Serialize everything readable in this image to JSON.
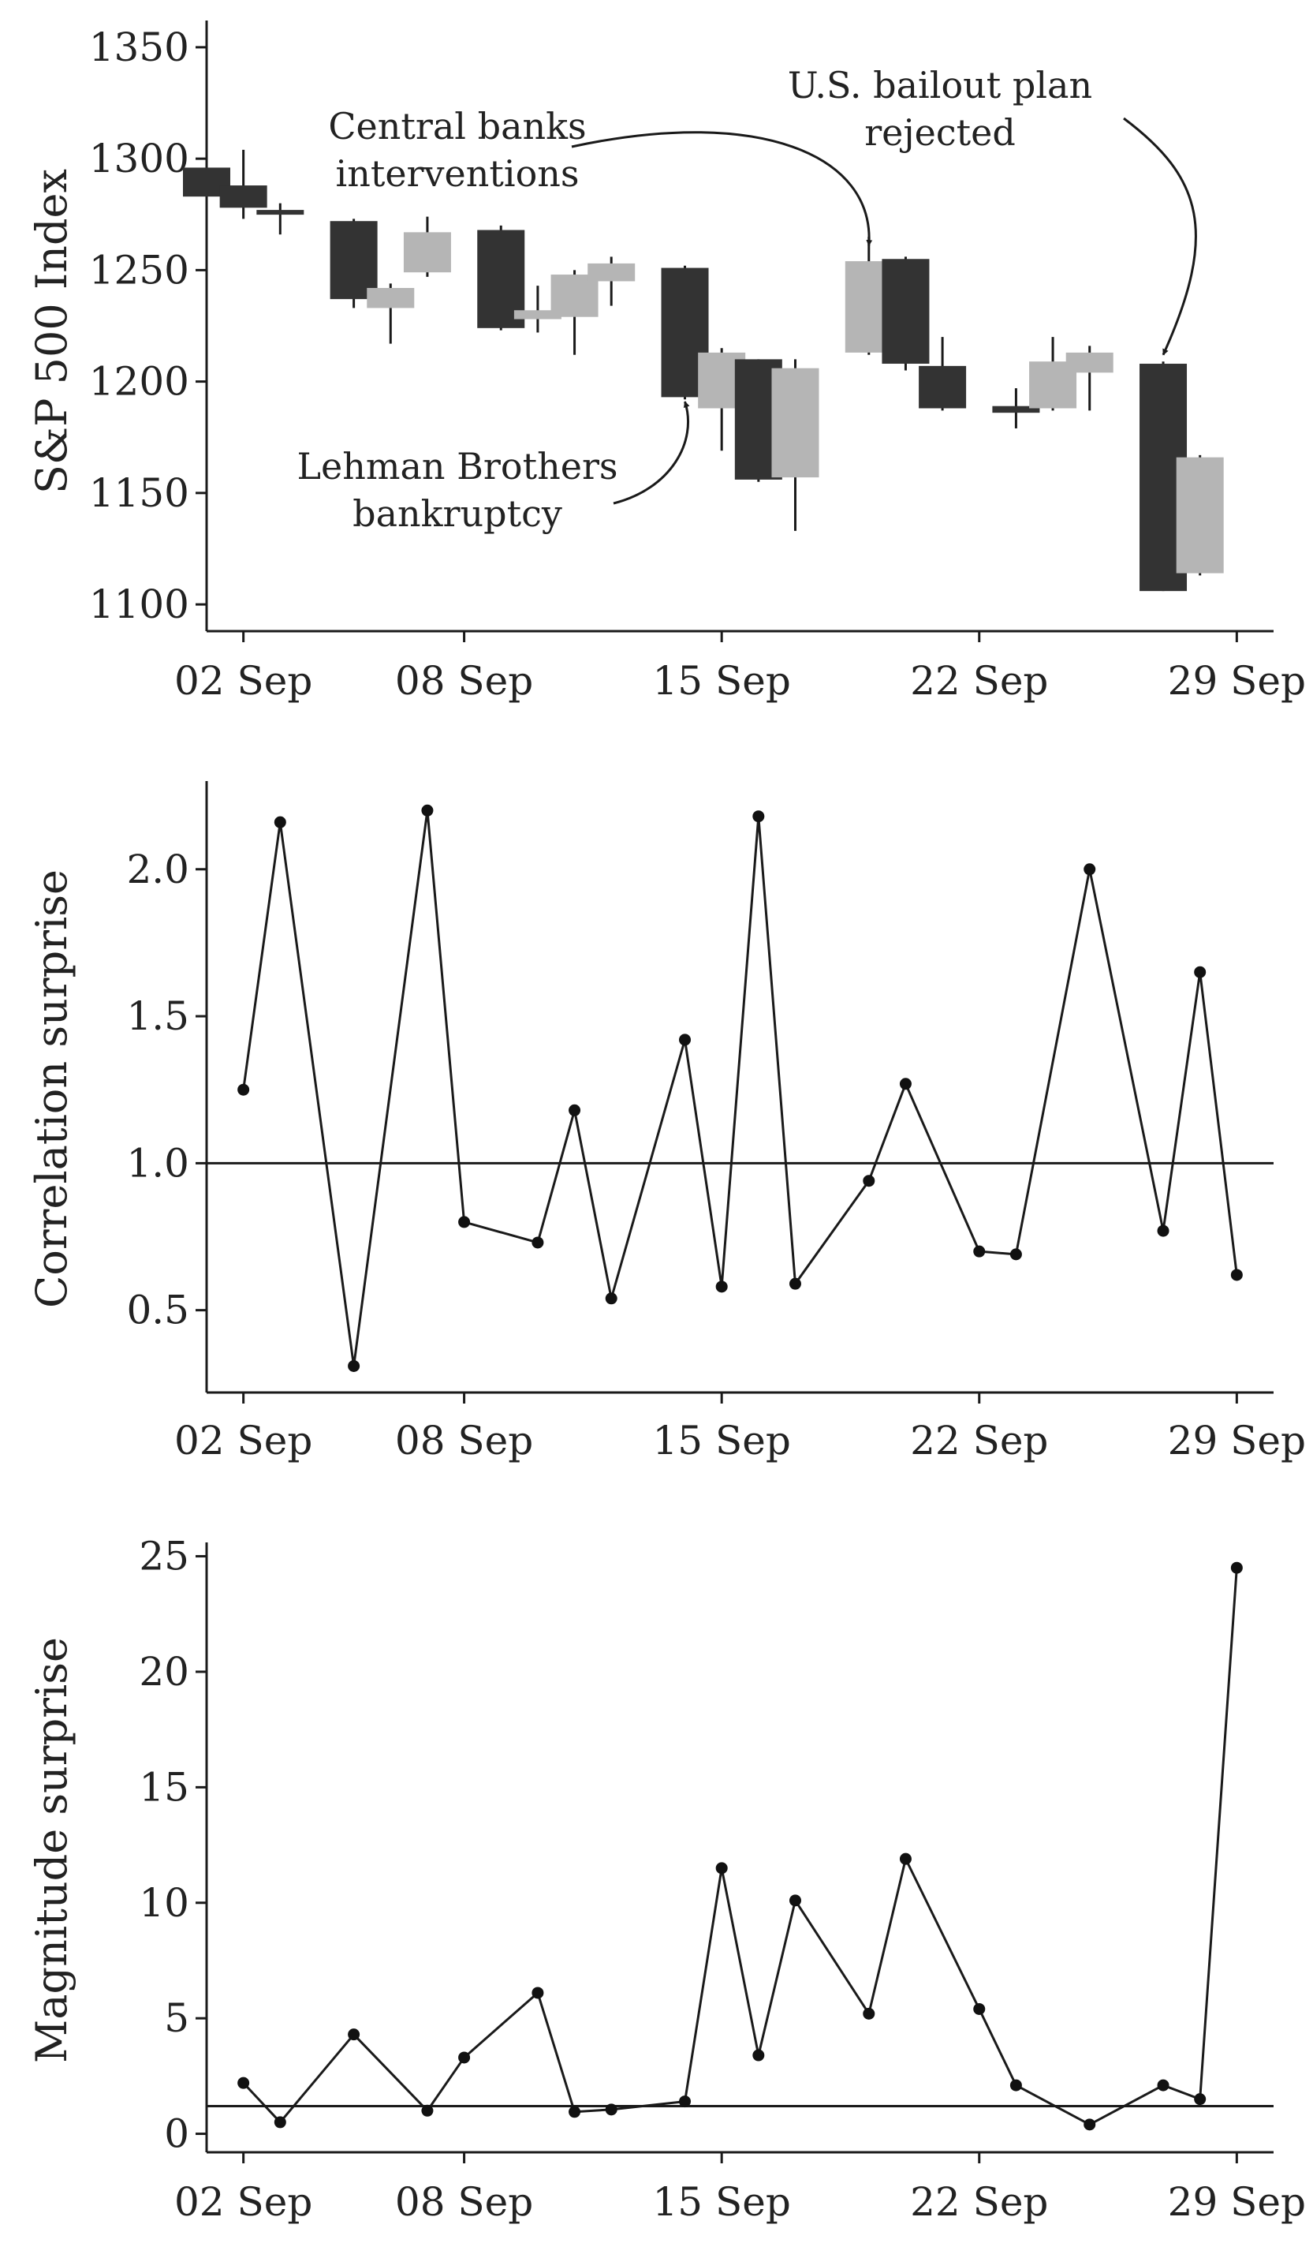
{
  "chart_data": [
    {
      "type": "candlestick",
      "ylabel": "S&P 500 Index",
      "xlabel": "",
      "ylim": [
        1088,
        1362
      ],
      "yticks": [
        1100,
        1150,
        1200,
        1250,
        1300,
        1350
      ],
      "xlim": [
        "2008-09-01",
        "2008-09-30"
      ],
      "xtick_dates": [
        "2008-09-02",
        "2008-09-08",
        "2008-09-15",
        "2008-09-22",
        "2008-09-29"
      ],
      "xtick_labels": [
        "02 Sep",
        "08 Sep",
        "15 Sep",
        "22 Sep",
        "29 Sep"
      ],
      "colors": {
        "up": "#b5b5b5",
        "down": "#333333"
      },
      "candles": [
        {
          "date": "2008-09-01",
          "open": 1296,
          "close": 1283,
          "high": 1297,
          "low": 1282
        },
        {
          "date": "2008-09-02",
          "open": 1288,
          "close": 1278,
          "high": 1304,
          "low": 1273
        },
        {
          "date": "2008-09-03",
          "open": 1277,
          "close": 1275,
          "high": 1280,
          "low": 1266
        },
        {
          "date": "2008-09-05",
          "open": 1272,
          "close": 1237,
          "high": 1273,
          "low": 1233
        },
        {
          "date": "2008-09-06",
          "open": 1233,
          "close": 1242,
          "high": 1244,
          "low": 1217
        },
        {
          "date": "2008-09-07",
          "open": 1249,
          "close": 1267,
          "high": 1274,
          "low": 1247
        },
        {
          "date": "2008-09-09",
          "open": 1268,
          "close": 1224,
          "high": 1270,
          "low": 1223
        },
        {
          "date": "2008-09-10",
          "open": 1228,
          "close": 1232,
          "high": 1243,
          "low": 1222
        },
        {
          "date": "2008-09-11",
          "open": 1229,
          "close": 1248,
          "high": 1250,
          "low": 1212
        },
        {
          "date": "2008-09-12",
          "open": 1245,
          "close": 1253,
          "high": 1256,
          "low": 1234
        },
        {
          "date": "2008-09-14",
          "open": 1251,
          "close": 1193,
          "high": 1252,
          "low": 1192
        },
        {
          "date": "2008-09-15",
          "open": 1188,
          "close": 1213,
          "high": 1215,
          "low": 1169
        },
        {
          "date": "2008-09-16",
          "open": 1210,
          "close": 1156,
          "high": 1210,
          "low": 1155
        },
        {
          "date": "2008-09-17",
          "open": 1157,
          "close": 1206,
          "high": 1210,
          "low": 1133
        },
        {
          "date": "2008-09-19",
          "open": 1213,
          "close": 1254,
          "high": 1265,
          "low": 1212
        },
        {
          "date": "2008-09-20",
          "open": 1255,
          "close": 1208,
          "high": 1256,
          "low": 1205
        },
        {
          "date": "2008-09-21",
          "open": 1207,
          "close": 1188,
          "high": 1220,
          "low": 1187
        },
        {
          "date": "2008-09-23",
          "open": 1189,
          "close": 1186,
          "high": 1197,
          "low": 1179
        },
        {
          "date": "2008-09-24",
          "open": 1188,
          "close": 1209,
          "high": 1220,
          "low": 1187
        },
        {
          "date": "2008-09-25",
          "open": 1204,
          "close": 1213,
          "high": 1216,
          "low": 1187
        },
        {
          "date": "2008-09-27",
          "open": 1208,
          "close": 1106,
          "high": 1209,
          "low": 1106
        },
        {
          "date": "2008-09-28",
          "open": 1114,
          "close": 1166,
          "high": 1167,
          "low": 1113
        }
      ],
      "annotations": [
        {
          "lines": [
            "Central banks",
            "interventions"
          ],
          "target_date": "2008-09-19",
          "target_value": 1261
        },
        {
          "lines": [
            "U.S. bailout plan",
            "rejected"
          ],
          "target_date": "2008-09-27",
          "target_value": 1212
        },
        {
          "lines": [
            "Lehman Brothers",
            "bankruptcy"
          ],
          "target_date": "2008-09-14",
          "target_value": 1191
        }
      ]
    },
    {
      "type": "line",
      "ylabel": "Correlation surprise",
      "xlabel": "",
      "ylim": [
        0.22,
        2.3
      ],
      "yticks": [
        0.5,
        1.0,
        1.5,
        2.0
      ],
      "ytick_labels": [
        "0.5",
        "1.0",
        "1.5",
        "2.0"
      ],
      "xlim": [
        "2008-09-01",
        "2008-09-30"
      ],
      "xtick_dates": [
        "2008-09-02",
        "2008-09-08",
        "2008-09-15",
        "2008-09-22",
        "2008-09-29"
      ],
      "xtick_labels": [
        "02 Sep",
        "08 Sep",
        "15 Sep",
        "22 Sep",
        "29 Sep"
      ],
      "reference_line": 1.0,
      "x": [
        "2008-09-02",
        "2008-09-03",
        "2008-09-05",
        "2008-09-07",
        "2008-09-08",
        "2008-09-10",
        "2008-09-11",
        "2008-09-12",
        "2008-09-14",
        "2008-09-15",
        "2008-09-16",
        "2008-09-17",
        "2008-09-19",
        "2008-09-20",
        "2008-09-22",
        "2008-09-23",
        "2008-09-25",
        "2008-09-27",
        "2008-09-28",
        "2008-09-29"
      ],
      "y": [
        1.25,
        2.16,
        0.31,
        2.2,
        0.8,
        0.73,
        1.18,
        0.54,
        1.42,
        0.58,
        2.18,
        0.59,
        0.94,
        1.27,
        0.7,
        0.69,
        2.0,
        0.77,
        1.65,
        0.62
      ]
    },
    {
      "type": "line",
      "ylabel": "Magnitude surprise",
      "xlabel": "",
      "ylim": [
        -0.8,
        25.6
      ],
      "yticks": [
        0,
        5,
        10,
        15,
        20,
        25
      ],
      "ytick_labels": [
        "0",
        "5",
        "10",
        "15",
        "20",
        "25"
      ],
      "xlim": [
        "2008-09-01",
        "2008-09-30"
      ],
      "xtick_dates": [
        "2008-09-02",
        "2008-09-08",
        "2008-09-15",
        "2008-09-22",
        "2008-09-29"
      ],
      "xtick_labels": [
        "02 Sep",
        "08 Sep",
        "15 Sep",
        "22 Sep",
        "29 Sep"
      ],
      "reference_line": 1.2,
      "x": [
        "2008-09-02",
        "2008-09-03",
        "2008-09-05",
        "2008-09-07",
        "2008-09-08",
        "2008-09-10",
        "2008-09-11",
        "2008-09-12",
        "2008-09-14",
        "2008-09-15",
        "2008-09-16",
        "2008-09-17",
        "2008-09-19",
        "2008-09-20",
        "2008-09-22",
        "2008-09-23",
        "2008-09-25",
        "2008-09-27",
        "2008-09-28",
        "2008-09-29"
      ],
      "y": [
        2.2,
        0.5,
        4.3,
        1.0,
        3.3,
        6.1,
        0.95,
        1.05,
        1.4,
        11.5,
        3.4,
        10.1,
        5.2,
        11.9,
        5.4,
        2.1,
        0.4,
        2.1,
        1.5,
        24.5
      ]
    }
  ]
}
